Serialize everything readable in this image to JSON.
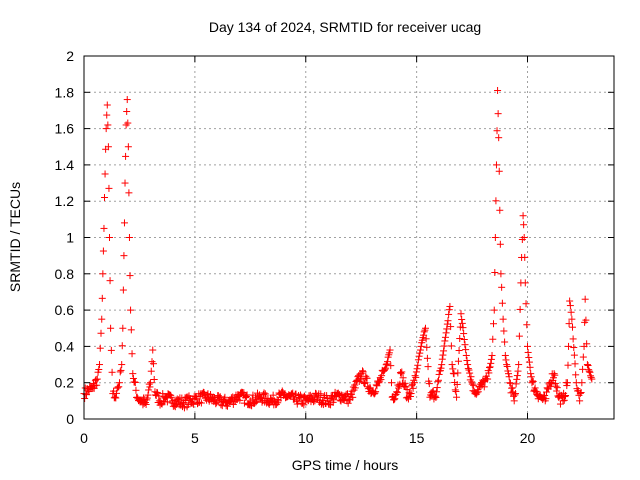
{
  "chart_data": {
    "type": "scatter",
    "title": "Day 134 of 2024, SRMTID for receiver ucag",
    "xlabel": "GPS time / hours",
    "ylabel": "SRMTID / TECUs",
    "xlim": [
      0,
      23.9
    ],
    "ylim": [
      0,
      2
    ],
    "xticks": [
      0,
      5,
      10,
      15,
      20
    ],
    "yticks": [
      0,
      0.2,
      0.4,
      0.6,
      0.8,
      1,
      1.2,
      1.4,
      1.6,
      1.8,
      2
    ],
    "xtick_labels": [
      "0",
      "5",
      "10",
      "15",
      "20"
    ],
    "ytick_labels": [
      "0",
      "0.2",
      "0.4",
      "0.6",
      "0.8",
      "1",
      "1.2",
      "1.4",
      "1.6",
      "1.8",
      "2"
    ],
    "grid": true,
    "marker": "+",
    "color": "#ff0000",
    "series": [
      {
        "name": "SRMTID",
        "x": [
          0.0,
          0.2,
          0.4,
          0.6,
          0.7,
          0.8,
          0.85,
          0.9,
          0.95,
          1.0,
          1.05,
          1.1,
          1.15,
          1.2,
          1.3,
          1.4,
          1.5,
          1.6,
          1.7,
          1.75,
          1.8,
          1.85,
          1.9,
          1.95,
          2.0,
          2.05,
          2.1,
          2.2,
          2.4,
          2.6,
          2.8,
          3.0,
          3.1,
          3.2,
          3.4,
          3.7,
          4.0,
          4.5,
          5.0,
          5.5,
          6.0,
          6.5,
          7.0,
          7.5,
          8.0,
          8.5,
          9.0,
          9.5,
          10.0,
          10.5,
          11.0,
          11.5,
          12.0,
          12.5,
          13.0,
          13.3,
          13.6,
          13.8,
          13.9,
          14.1,
          14.3,
          14.6,
          14.9,
          15.2,
          15.4,
          15.6,
          15.9,
          16.1,
          16.3,
          16.5,
          16.6,
          16.8,
          17.0,
          17.3,
          17.6,
          17.9,
          18.2,
          18.4,
          18.5,
          18.55,
          18.6,
          18.65,
          18.7,
          18.75,
          18.8,
          18.9,
          19.0,
          19.2,
          19.4,
          19.6,
          19.7,
          19.8,
          19.85,
          19.9,
          20.0,
          20.2,
          20.4,
          20.6,
          20.8,
          21.0,
          21.2,
          21.4,
          21.6,
          21.8,
          21.85,
          21.9,
          22.0,
          22.2,
          22.35,
          22.45,
          22.55,
          22.6,
          22.7,
          22.9
        ],
        "y": [
          0.14,
          0.16,
          0.17,
          0.22,
          0.3,
          0.55,
          0.8,
          1.05,
          1.35,
          1.6,
          1.73,
          1.5,
          1.0,
          0.5,
          0.14,
          0.12,
          0.17,
          0.2,
          0.3,
          0.5,
          0.9,
          1.3,
          1.62,
          1.76,
          1.5,
          1.0,
          0.6,
          0.25,
          0.12,
          0.1,
          0.08,
          0.2,
          0.38,
          0.15,
          0.1,
          0.12,
          0.1,
          0.09,
          0.11,
          0.12,
          0.1,
          0.09,
          0.13,
          0.1,
          0.12,
          0.1,
          0.13,
          0.11,
          0.1,
          0.12,
          0.1,
          0.13,
          0.11,
          0.25,
          0.15,
          0.2,
          0.28,
          0.38,
          0.12,
          0.15,
          0.25,
          0.12,
          0.2,
          0.4,
          0.5,
          0.12,
          0.15,
          0.28,
          0.45,
          0.62,
          0.3,
          0.12,
          0.58,
          0.3,
          0.15,
          0.18,
          0.22,
          0.35,
          0.6,
          1.0,
          1.4,
          1.81,
          1.55,
          1.15,
          0.8,
          0.55,
          0.35,
          0.2,
          0.1,
          0.3,
          0.75,
          1.12,
          1.0,
          0.75,
          0.4,
          0.2,
          0.15,
          0.12,
          0.1,
          0.2,
          0.25,
          0.12,
          0.1,
          0.2,
          0.4,
          0.65,
          0.55,
          0.2,
          0.1,
          0.2,
          0.4,
          0.66,
          0.3,
          0.22
        ]
      }
    ]
  }
}
